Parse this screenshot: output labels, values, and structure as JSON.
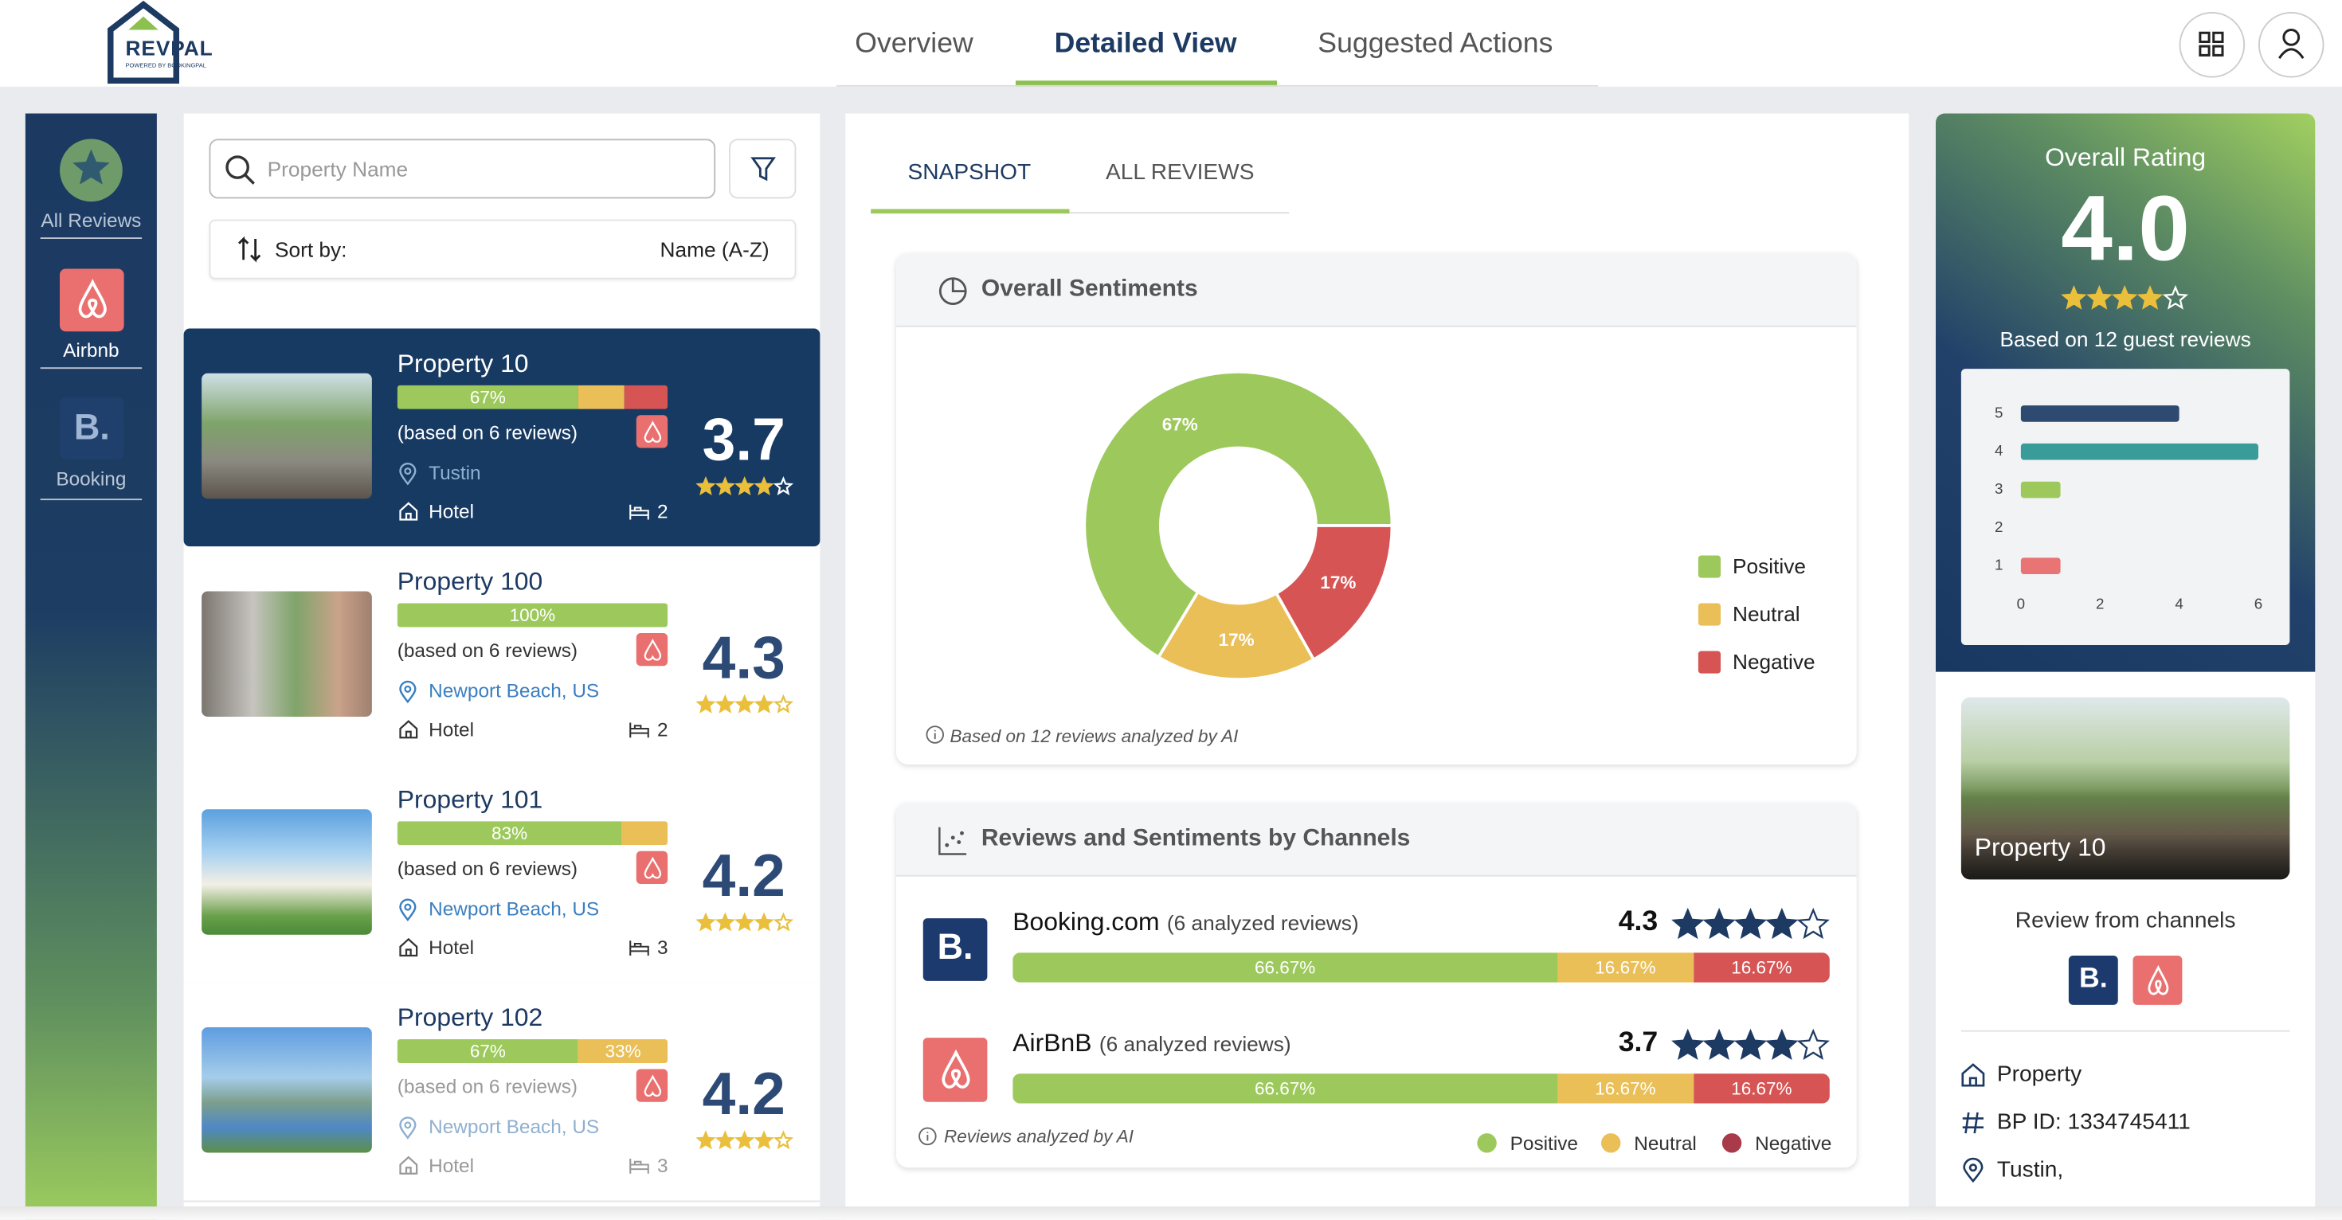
{
  "header": {
    "logo": "REVPAL",
    "logo_sub": "POWERED BY BOOKINGPAL",
    "tabs": [
      "Overview",
      "Detailed View",
      "Suggested Actions"
    ],
    "active_tab": 1
  },
  "sidebar": {
    "items": [
      "All Reviews",
      "Airbnb",
      "Booking"
    ],
    "booking_icon": "B.",
    "active": 1
  },
  "search": {
    "placeholder": "Property Name",
    "sort_label": "Sort by:",
    "sort_value": "Name (A-Z)"
  },
  "sentiment_colors": {
    "positive": "#9dc95c",
    "neutral": "#eabf57",
    "negative": "#d65454"
  },
  "properties": [
    {
      "name": "Property 10",
      "sentiment": {
        "positive": {
          "value": 67,
          "label": "67%"
        },
        "neutral": {
          "value": 17
        },
        "negative": {
          "value": 16
        }
      },
      "based_on": "(based on 6 reviews)",
      "location": "Tustin",
      "kind": "Hotel",
      "rooms": "2",
      "rating": 3.7
    },
    {
      "name": "Property 100",
      "sentiment": {
        "positive": {
          "value": 100,
          "label": "100%"
        }
      },
      "based_on": "(based on 6 reviews)",
      "location": "Newport Beach, US",
      "kind": "Hotel",
      "rooms": "2",
      "rating": 4.3
    },
    {
      "name": "Property 101",
      "sentiment": {
        "positive": {
          "value": 83,
          "label": "83%"
        },
        "neutral": {
          "value": 17
        }
      },
      "based_on": "(based on 6 reviews)",
      "location": "Newport Beach, US",
      "kind": "Hotel",
      "rooms": "3",
      "rating": 4.2
    },
    {
      "name": "Property 102",
      "sentiment": {
        "positive": {
          "value": 67,
          "label": "67%"
        },
        "neutral": {
          "value": 33,
          "label": "33%"
        }
      },
      "based_on": "(based on 6 reviews)",
      "location": "Newport Beach, US",
      "kind": "Hotel",
      "rooms": "3",
      "rating": 4.2
    }
  ],
  "detail_tabs": [
    "SNAPSHOT",
    "ALL REVIEWS"
  ],
  "sentiment_chart": {
    "type": "pie",
    "title": "Overall Sentiments",
    "categories": [
      "Positive",
      "Neutral",
      "Negative"
    ],
    "values": [
      67,
      17,
      17
    ],
    "value_labels": [
      "67%",
      "17%",
      "17%"
    ],
    "colors": [
      "#9dc95c",
      "#eabf57",
      "#d65454"
    ],
    "note": "Based on 12 reviews analyzed by AI"
  },
  "channels": {
    "title": "Reviews and Sentiments by Channels",
    "rows": [
      {
        "name": "Booking.com",
        "count": "(6 analyzed reviews)",
        "rating": 4.3,
        "sentiment": {
          "positive": {
            "value": 66.67,
            "label": "66.67%"
          },
          "neutral": {
            "value": 16.67,
            "label": "16.67%"
          },
          "negative": {
            "value": 16.67,
            "label": "16.67%"
          }
        }
      },
      {
        "name": "AirBnB",
        "count": "(6 analyzed reviews)",
        "rating": 3.7,
        "sentiment": {
          "positive": {
            "value": 66.67,
            "label": "66.67%"
          },
          "neutral": {
            "value": 16.67,
            "label": "16.67%"
          },
          "negative": {
            "value": 16.67,
            "label": "16.67%"
          }
        }
      }
    ],
    "note": "Reviews analyzed by AI",
    "legend": [
      {
        "name": "Positive",
        "color": "#9dc95c"
      },
      {
        "name": "Neutral",
        "color": "#eabf57"
      },
      {
        "name": "Negative",
        "color": "#a83a4a"
      }
    ]
  },
  "overall": {
    "title": "Overall Rating",
    "rating": {
      "value": 4,
      "label": "4.0"
    },
    "subtitle": "Based on 12 guest reviews"
  },
  "rating_chart": {
    "type": "bar",
    "orientation": "horizontal",
    "categories": [
      "5",
      "4",
      "3",
      "2",
      "1"
    ],
    "values": [
      4,
      6,
      1,
      0,
      1
    ],
    "colors": [
      "#2f4a70",
      "#3a9c98",
      "#9dc95c",
      "#9dc95c",
      "#e87474"
    ],
    "xlim": [
      0,
      6
    ],
    "xticks": [
      0,
      2,
      4,
      6
    ]
  },
  "property_card": {
    "name": "Property 10",
    "channels_label": "Review from channels",
    "details": [
      "Property",
      "BP ID: 1334745411",
      "Tustin,"
    ]
  }
}
